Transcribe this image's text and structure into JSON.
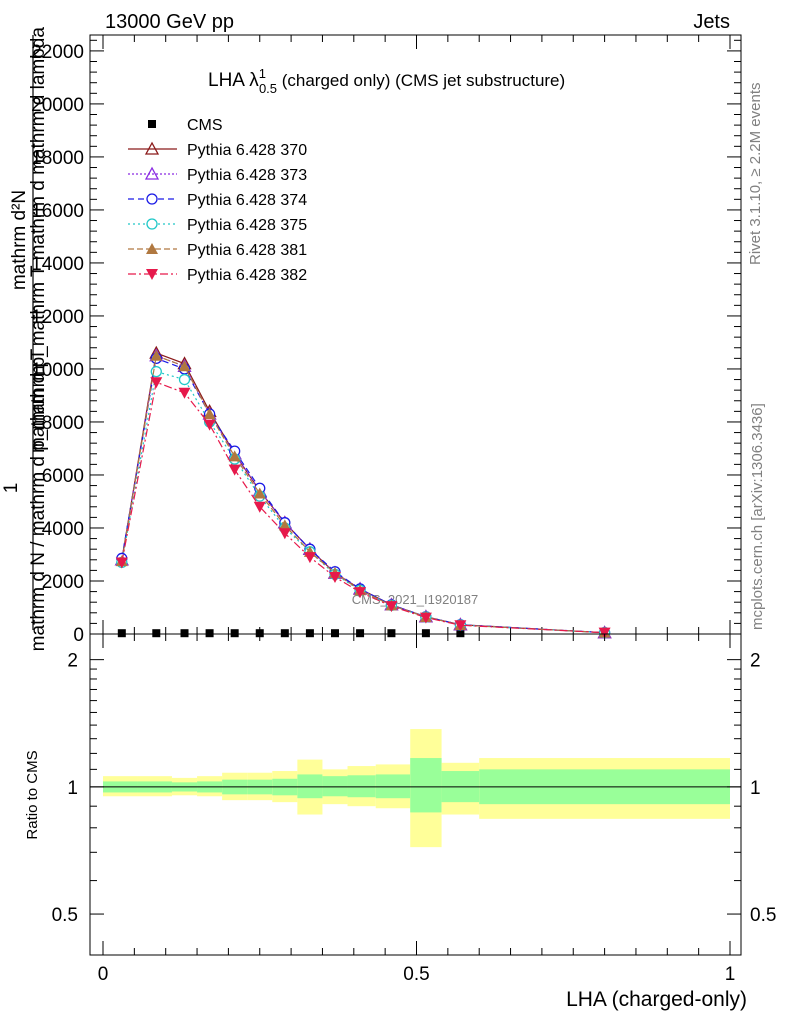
{
  "header": {
    "energy_label": "13000 GeV pp",
    "process_label": "Jets"
  },
  "side_labels": {
    "rivet": "Rivet 3.1.10, ≥ 2.2M events",
    "mcplots": "mcplots.cern.ch [arXiv:1306.3436]"
  },
  "main_plot": {
    "title_main": "LHA λ",
    "title_sup": "1",
    "title_sub": "0.5",
    "title_rest": " (charged only) (CMS jet substructure)",
    "ylabel_top": "mathrm d²N",
    "ylabel_top2": "mathrm d p_mathrm T mathrm d mathrm d lambda",
    "ylabel_one": "1",
    "ylabel_bottom": "mathrm d N / mathrm d p_mathrm T",
    "watermark": "CMS_2021_I1920187",
    "ymin": 0,
    "ymax": 22000,
    "y_ticks": [
      0,
      2000,
      4000,
      6000,
      8000,
      10000,
      12000,
      14000,
      16000,
      18000,
      20000,
      22000
    ]
  },
  "ratio_plot": {
    "ylabel": "Ratio to CMS",
    "y_ticks": [
      0.5,
      1,
      2
    ],
    "ymin": 0.4,
    "ymax": 2.3
  },
  "xlabel": "LHA (charged-only)",
  "x_ticks": [
    0,
    0.5,
    1
  ],
  "colors": {
    "band_outer": "#ffff99",
    "band_inner": "#99ff99"
  },
  "chart_data": {
    "type": "line",
    "x": [
      0.03,
      0.085,
      0.13,
      0.17,
      0.21,
      0.25,
      0.29,
      0.33,
      0.37,
      0.41,
      0.46,
      0.515,
      0.57,
      0.8
    ],
    "series": [
      {
        "name": "CMS",
        "color": "#000000",
        "marker": "square",
        "dash": "none",
        "values": [
          30,
          30,
          30,
          30,
          30,
          30,
          30,
          30,
          30,
          30,
          30,
          30,
          30,
          30
        ]
      },
      {
        "name": "Pythia 6.428 370",
        "color": "#8b1a1a",
        "marker": "triangle-up-open",
        "dash": "none",
        "values": [
          2800,
          10600,
          10200,
          8400,
          6800,
          5400,
          4200,
          3200,
          2300,
          1700,
          1100,
          650,
          350,
          50
        ]
      },
      {
        "name": "Pythia 6.428 373",
        "color": "#8a2be2",
        "marker": "triangle-up-open",
        "dash": "2,2",
        "values": [
          2800,
          10500,
          10100,
          8300,
          6800,
          5400,
          4200,
          3200,
          2300,
          1700,
          1100,
          650,
          350,
          50
        ]
      },
      {
        "name": "Pythia 6.428 374",
        "color": "#1a1ae6",
        "marker": "circle-open",
        "dash": "6,4",
        "values": [
          2850,
          10400,
          10000,
          8300,
          6900,
          5500,
          4200,
          3200,
          2350,
          1700,
          1100,
          650,
          350,
          50
        ]
      },
      {
        "name": "Pythia 6.428 375",
        "color": "#20c8c8",
        "marker": "circle-open",
        "dash": "2,3",
        "values": [
          2700,
          9900,
          9600,
          8000,
          6600,
          5200,
          4000,
          3100,
          2250,
          1650,
          1080,
          640,
          340,
          50
        ]
      },
      {
        "name": "Pythia 6.428 381",
        "color": "#b07840",
        "marker": "triangle-up-filled",
        "dash": "6,3",
        "values": [
          2750,
          10500,
          10100,
          8300,
          6700,
          5300,
          4100,
          3100,
          2300,
          1650,
          1080,
          640,
          340,
          50
        ]
      },
      {
        "name": "Pythia 6.428 382",
        "color": "#e6194b",
        "marker": "triangle-down-filled",
        "dash": "8,3,2,3",
        "values": [
          2700,
          9500,
          9100,
          7900,
          6200,
          4800,
          3800,
          2900,
          2150,
          1580,
          1050,
          620,
          330,
          50
        ]
      }
    ],
    "ratio_bands": [
      {
        "x0": 0.0,
        "x1": 0.055,
        "inner": [
          0.97,
          1.03
        ],
        "outer": [
          0.95,
          1.06
        ]
      },
      {
        "x0": 0.055,
        "x1": 0.11,
        "inner": [
          0.97,
          1.03
        ],
        "outer": [
          0.95,
          1.06
        ]
      },
      {
        "x0": 0.11,
        "x1": 0.15,
        "inner": [
          0.975,
          1.025
        ],
        "outer": [
          0.955,
          1.05
        ]
      },
      {
        "x0": 0.15,
        "x1": 0.19,
        "inner": [
          0.97,
          1.03
        ],
        "outer": [
          0.95,
          1.06
        ]
      },
      {
        "x0": 0.19,
        "x1": 0.23,
        "inner": [
          0.96,
          1.04
        ],
        "outer": [
          0.93,
          1.08
        ]
      },
      {
        "x0": 0.23,
        "x1": 0.27,
        "inner": [
          0.96,
          1.04
        ],
        "outer": [
          0.93,
          1.08
        ]
      },
      {
        "x0": 0.27,
        "x1": 0.31,
        "inner": [
          0.955,
          1.045
        ],
        "outer": [
          0.92,
          1.09
        ]
      },
      {
        "x0": 0.31,
        "x1": 0.35,
        "inner": [
          0.94,
          1.07
        ],
        "outer": [
          0.86,
          1.16
        ]
      },
      {
        "x0": 0.35,
        "x1": 0.39,
        "inner": [
          0.95,
          1.06
        ],
        "outer": [
          0.91,
          1.1
        ]
      },
      {
        "x0": 0.39,
        "x1": 0.435,
        "inner": [
          0.945,
          1.065
        ],
        "outer": [
          0.9,
          1.12
        ]
      },
      {
        "x0": 0.435,
        "x1": 0.49,
        "inner": [
          0.94,
          1.07
        ],
        "outer": [
          0.89,
          1.13
        ]
      },
      {
        "x0": 0.49,
        "x1": 0.54,
        "inner": [
          0.87,
          1.17
        ],
        "outer": [
          0.72,
          1.37
        ]
      },
      {
        "x0": 0.54,
        "x1": 0.6,
        "inner": [
          0.92,
          1.09
        ],
        "outer": [
          0.86,
          1.14
        ]
      },
      {
        "x0": 0.6,
        "x1": 1.0,
        "inner": [
          0.91,
          1.1
        ],
        "outer": [
          0.84,
          1.17
        ]
      }
    ]
  }
}
